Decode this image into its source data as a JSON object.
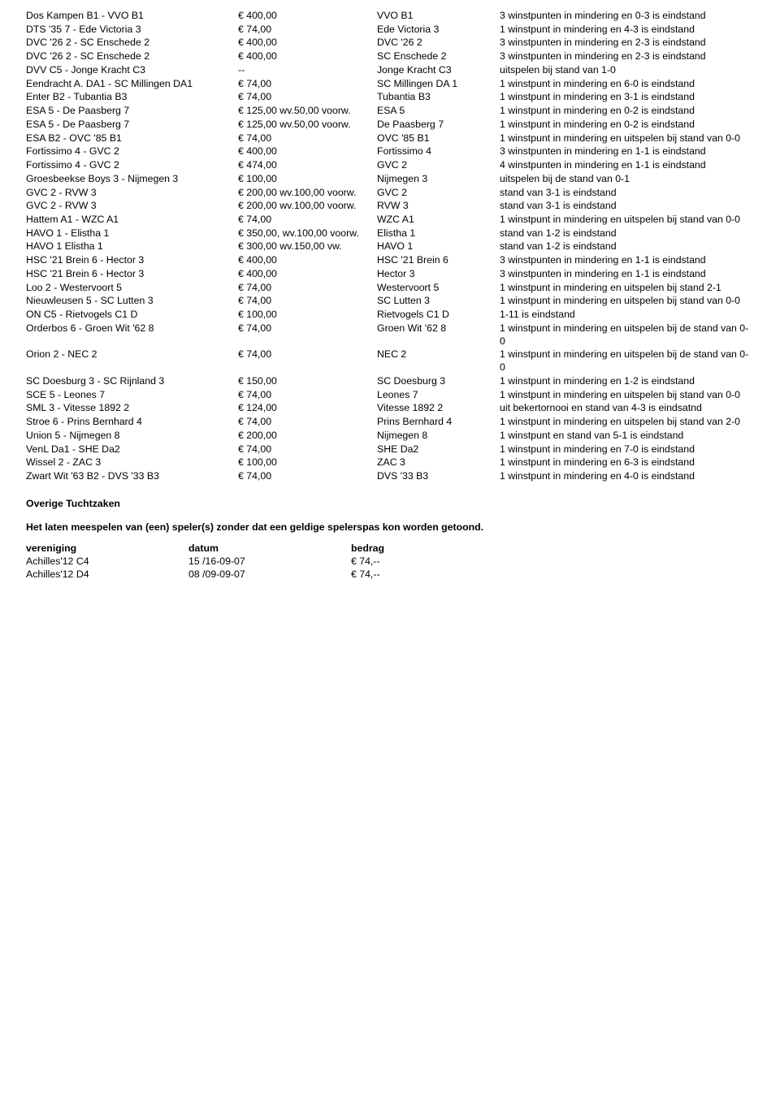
{
  "rows": [
    {
      "match": "Dos Kampen B1 - VVO B1",
      "amount": "€ 400,00",
      "team": "VVO B1",
      "decision": "3 winstpunten in mindering en 0-3 is eindstand"
    },
    {
      "match": "DTS '35 7 - Ede Victoria 3",
      "amount": "€ 74,00",
      "team": "Ede Victoria 3",
      "decision": "1 winstpunt in mindering en 4-3 is eindstand"
    },
    {
      "match": "DVC '26 2  - SC Enschede 2",
      "amount": "€ 400,00",
      "team": "DVC '26 2",
      "decision": "3 winstpunten in mindering en 2-3 is eindstand"
    },
    {
      "match": "DVC '26 2 - SC Enschede 2",
      "amount": "€ 400,00",
      "team": "SC Enschede 2",
      "decision": "3 winstpunten in mindering en 2-3 is eindstand"
    },
    {
      "match": "DVV C5 - Jonge Kracht C3",
      "amount": "--",
      "team": "Jonge Kracht C3",
      "decision": "uitspelen bij stand van 1-0"
    },
    {
      "match": "Eendracht A. DA1 - SC Millingen DA1",
      "amount": "€ 74,00",
      "team": "SC Millingen DA 1",
      "decision": "1 winstpunt in mindering en 6-0 is eindstand"
    },
    {
      "match": "Enter B2 - Tubantia B3",
      "amount": "€ 74,00",
      "team": "Tubantia B3",
      "decision": "1 winstpunt in mindering en 3-1 is eindstand"
    },
    {
      "match": "ESA 5 - De Paasberg 7",
      "amount": "€ 125,00 wv.50,00 voorw.",
      "team": "ESA 5",
      "decision": "1 winstpunt in mindering en 0-2 is eindstand"
    },
    {
      "match": "ESA 5 - De Paasberg 7",
      "amount": "€ 125,00 wv.50,00 voorw.",
      "team": "De Paasberg 7",
      "decision": "1 winstpunt in mindering en 0-2 is eindstand"
    },
    {
      "match": "ESA B2 - OVC '85 B1",
      "amount": "€ 74,00",
      "team": "OVC '85 B1",
      "decision": "1 winstpunt in mindering en uitspelen bij stand van 0-0"
    },
    {
      "match": "Fortissimo 4 - GVC 2",
      "amount": "€ 400,00",
      "team": "Fortissimo 4",
      "decision": "3 winstpunten in mindering en 1-1 is eindstand"
    },
    {
      "match": "Fortissimo 4 - GVC 2",
      "amount": "€ 474,00",
      "team": "GVC 2",
      "decision": "4 winstpunten in mindering en 1-1 is eindstand"
    },
    {
      "match": "Groesbeekse Boys 3 - Nijmegen 3",
      "amount": "€ 100,00",
      "team": "Nijmegen 3",
      "decision": "uitspelen bij de stand van 0-1"
    },
    {
      "match": "GVC 2 - RVW 3",
      "amount": "€ 200,00 wv.100,00 voorw.",
      "team": "GVC 2",
      "decision": "stand van 3-1 is eindstand"
    },
    {
      "match": "GVC 2 - RVW 3",
      "amount": "€ 200,00 wv.100,00 voorw.",
      "team": "RVW 3",
      "decision": "stand van 3-1 is eindstand"
    },
    {
      "match": "Hattem A1 - WZC A1",
      "amount": "€ 74,00",
      "team": "WZC A1",
      "decision": "1 winstpunt in mindering en uitspelen bij stand van 0-0"
    },
    {
      "match": "HAVO 1 - Elistha 1",
      "amount": "€ 350,00, wv.100,00 voorw.",
      "team": "Elistha 1",
      "decision": "stand van 1-2 is eindstand"
    },
    {
      "match": "HAVO 1 Elistha 1",
      "amount": "€ 300,00 wv.150,00 vw.",
      "team": "HAVO 1",
      "decision": "stand van 1-2 is eindstand"
    },
    {
      "match": "HSC '21 Brein 6 - Hector 3",
      "amount": "€ 400,00",
      "team": "HSC '21 Brein 6",
      "decision": "3 winstpunten in mindering en 1-1 is eindstand"
    },
    {
      "match": "HSC '21 Brein 6 - Hector 3",
      "amount": "€ 400,00",
      "team": "Hector 3",
      "decision": "3 winstpunten in mindering en 1-1 is eindstand"
    },
    {
      "match": "Loo 2 - Westervoort 5",
      "amount": "€ 74,00",
      "team": "Westervoort 5",
      "decision": "1 winstpunt in mindering en uitspelen bij stand 2-1"
    },
    {
      "match": "Nieuwleusen 5 - SC Lutten 3",
      "amount": "€ 74,00",
      "team": "SC Lutten 3",
      "decision": "1 winstpunt in mindering en uitspelen bij stand van 0-0"
    },
    {
      "match": "ON C5 - Rietvogels C1 D",
      "amount": "€ 100,00",
      "team": "Rietvogels C1 D",
      "decision": "1-11 is eindstand"
    },
    {
      "match": "Orderbos 6 - Groen Wit '62 8",
      "amount": "€ 74,00",
      "team": "Groen Wit '62 8",
      "decision": "1 winstpunt in mindering en uitspelen bij de stand van 0-0"
    },
    {
      "match": "Orion 2 - NEC 2",
      "amount": "€ 74,00",
      "team": "NEC 2",
      "decision": "1 winstpunt in mindering en uitspelen bij de stand van 0-0"
    },
    {
      "match": "SC Doesburg 3 - SC Rijnland 3",
      "amount": "€ 150,00",
      "team": "SC Doesburg 3",
      "decision": "1 winstpunt in mindering en 1-2 is eindstand"
    },
    {
      "match": "SCE 5 - Leones 7",
      "amount": "€ 74,00",
      "team": "Leones 7",
      "decision": "1 winstpunt in mindering en uitspelen bij stand van 0-0"
    },
    {
      "match": "SML 3 - Vitesse 1892 2",
      "amount": "€ 124,00",
      "team": "Vitesse 1892 2",
      "decision": "uit bekertornooi en stand van 4-3 is eindsatnd"
    },
    {
      "match": "Stroe 6 - Prins Bernhard 4",
      "amount": "€ 74,00",
      "team": "Prins Bernhard 4",
      "decision": "1 winstpunt in mindering en uitspelen bij stand van 2-0"
    },
    {
      "match": "Union 5 - Nijmegen 8",
      "amount": "€ 200,00",
      "team": "Nijmegen 8",
      "decision": "1 winstpunt en stand van 5-1 is eindstand"
    },
    {
      "match": "VenL Da1 - SHE Da2",
      "amount": "€ 74,00",
      "team": "SHE Da2",
      "decision": "1 winstpunt in mindering en 7-0 is eindstand"
    },
    {
      "match": "Wissel 2 - ZAC 3",
      "amount": "€ 100,00",
      "team": "ZAC 3",
      "decision": "1 winstpunt in mindering en 6-3 is eindstand"
    },
    {
      "match": "Zwart Wit '63 B2 - DVS '33 B3",
      "amount": "€ 74,00",
      "team": "DVS '33 B3",
      "decision": "1 winstpunt in mindering en 4-0 is eindstand"
    }
  ],
  "section2_heading": "Overige Tuchtzaken",
  "fine_intro": "Het laten meespelen van (een) speler(s) zonder dat een geldige spelerspas kon worden getoond.",
  "fine_headers": {
    "club": "vereniging",
    "date": "datum",
    "amount": "bedrag"
  },
  "fines": [
    {
      "club": "Achilles'12 C4",
      "date": "15 /16-09-07",
      "amount": "€ 74,--"
    },
    {
      "club": "Achilles'12 D4",
      "date": "08 /09-09-07",
      "amount": "€ 74,--"
    }
  ]
}
